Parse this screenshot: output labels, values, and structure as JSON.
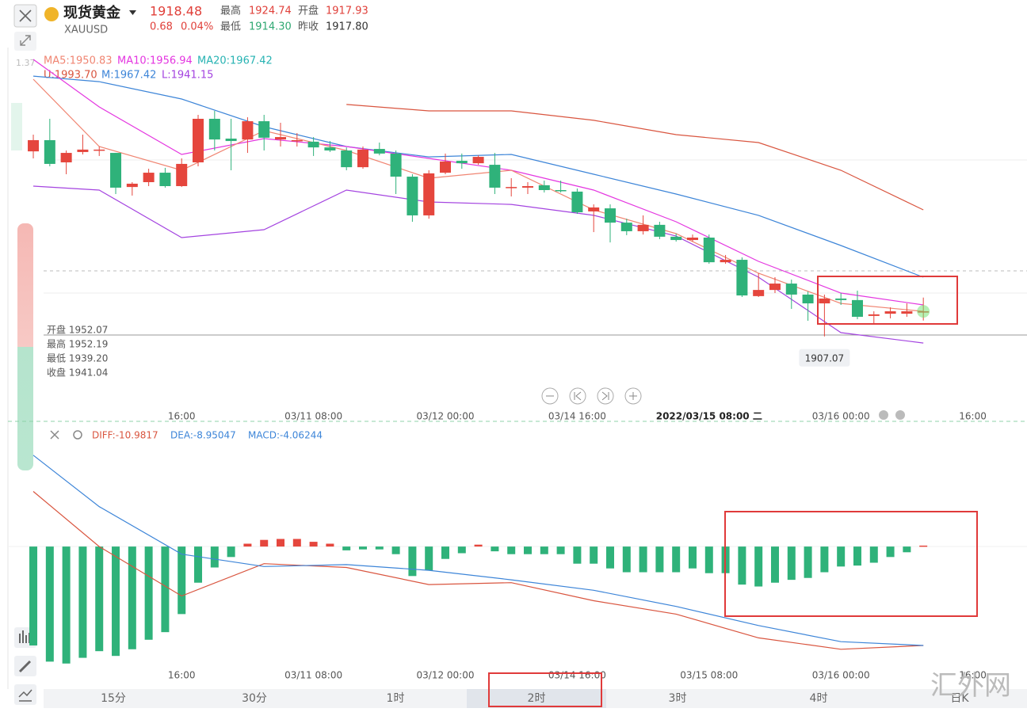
{
  "header": {
    "name": "现货黄金",
    "symbol": "XAUUSD",
    "price": "1918.48",
    "change": "0.68",
    "change_pct": "0.04%",
    "high_label": "最高",
    "high": "1924.74",
    "open_label": "开盘",
    "open": "1917.93",
    "low_label": "最低",
    "low": "1914.30",
    "prev_label": "昨收",
    "prev": "1917.80",
    "axis_hint": "1.37"
  },
  "legend_ma": [
    "MA5:1950.83",
    "MA10:1956.94",
    "MA20:1967.42"
  ],
  "legend_boll": [
    "U:1993.70",
    "M:1967.42",
    "L:1941.15"
  ],
  "info": [
    "开盘 1952.07",
    "最高 1952.19",
    "最低 1939.20",
    "收盘 1941.04"
  ],
  "chart_data": [
    {
      "type": "candlestick",
      "up_color": "#e5463d",
      "down_color": "#2fb27a",
      "xlim": [
        -1.54,
        60.29
      ],
      "ylim": [
        1874.6,
        2038.4
      ],
      "open": [
        1991.2,
        1996.3,
        1986.2,
        1990.9,
        1991.6,
        1990.5,
        1975.0,
        1977.2,
        1981.5,
        1975.4,
        1986.2,
        2006.0,
        1997.0,
        1996.6,
        2004.9,
        1996.6,
        1995.9,
        1995.6,
        1993.0,
        1991.6,
        1984.0,
        1992.3,
        1990.2,
        1979.7,
        1962.1,
        1981.5,
        1986.9,
        1985.8,
        1985.1,
        1974.7,
        1974.7,
        1975.8,
        1973.6,
        1972.9,
        1963.9,
        1965.3,
        1958.8,
        1954.9,
        1957.8,
        1952.4,
        1950.9,
        1952.0,
        1940.8,
        1941.9,
        1925.4,
        1928.2,
        1931.1,
        1926.1,
        1922.1,
        1924.3,
        1923.6,
        1916.4,
        1917.4,
        1917.4,
        1917.93
      ],
      "high": [
        1998.8,
        2006.0,
        1991.6,
        1998.8,
        1993.4,
        1990.5,
        1977.2,
        1983.3,
        1983.7,
        1988.0,
        2007.8,
        2009.6,
        2006.0,
        2006.7,
        2007.8,
        2004.2,
        1999.5,
        1997.7,
        1995.9,
        1993.0,
        1993.4,
        1995.2,
        1991.6,
        1980.8,
        1982.6,
        1990.2,
        1990.2,
        1989.4,
        1990.5,
        1979.0,
        1977.2,
        1977.9,
        1977.9,
        1974.3,
        1967.1,
        1967.1,
        1960.6,
        1962.1,
        1959.2,
        1953.8,
        1953.4,
        1953.4,
        1944.1,
        1943.0,
        1935.8,
        1934.0,
        1932.9,
        1927.5,
        1926.1,
        1926.8,
        1927.9,
        1918.5,
        1920.3,
        1922.1,
        1924.74
      ],
      "low": [
        1988.0,
        1984.4,
        1980.8,
        1989.8,
        1989.1,
        1971.8,
        1971.1,
        1975.4,
        1974.7,
        1975.0,
        1984.4,
        1991.6,
        1982.6,
        1990.5,
        1991.6,
        1993.4,
        1993.4,
        1989.1,
        1990.9,
        1982.6,
        1983.3,
        1989.4,
        1971.8,
        1959.2,
        1960.6,
        1980.8,
        1983.3,
        1985.1,
        1971.8,
        1970.7,
        1971.8,
        1972.5,
        1972.5,
        1962.8,
        1954.5,
        1949.8,
        1953.1,
        1953.4,
        1951.3,
        1950.2,
        1950.2,
        1940.1,
        1940.1,
        1925.0,
        1925.0,
        1926.8,
        1919.6,
        1914.2,
        1907.07,
        1921.4,
        1914.9,
        1913.1,
        1915.3,
        1916.0,
        1914.3
      ],
      "close": [
        1996.3,
        1985.5,
        1990.5,
        1992.0,
        1992.0,
        1974.7,
        1976.5,
        1981.5,
        1975.4,
        1985.5,
        2006.0,
        1996.6,
        1995.9,
        2004.9,
        1997.4,
        1997.7,
        1996.3,
        1993.0,
        1991.6,
        1984.0,
        1992.0,
        1990.2,
        1979.7,
        1962.1,
        1981.2,
        1986.6,
        1985.8,
        1988.7,
        1974.7,
        1975.0,
        1975.4,
        1973.6,
        1973.2,
        1963.5,
        1965.7,
        1958.8,
        1954.9,
        1957.8,
        1952.4,
        1950.9,
        1952.0,
        1940.8,
        1941.9,
        1925.7,
        1928.2,
        1931.1,
        1926.1,
        1922.1,
        1924.3,
        1923.6,
        1916.0,
        1917.1,
        1918.5,
        1918.5,
        1918.48
      ],
      "line_x": [
        0,
        4,
        9,
        14,
        19,
        24,
        29,
        34,
        39,
        44,
        49,
        54
      ],
      "series": [
        {
          "color": "#d9553f",
          "values": [
            2036.6,
            null,
            null,
            null,
            2012.5,
            2009.6,
            2009.6,
            2005.3,
            1998.8,
            1995.2,
            1982.6,
            1964.6
          ]
        },
        {
          "color": "#3d85d8",
          "values": [
            2025.4,
            2022.9,
            2015.0,
            2002.4,
            1993.4,
            1988.7,
            1989.8,
            1980.8,
            1971.8,
            1962.1,
            1948.4,
            1934.0
          ]
        },
        {
          "color": "#a444e0",
          "values": [
            1975.4,
            1973.6,
            1952.0,
            1955.6,
            1973.6,
            1968.2,
            1967.1,
            1962.1,
            1952.7,
            1934.0,
            1908.8,
            1904.1
          ]
        },
        {
          "color": "#e436e0",
          "values": [
            2033.0,
            2011.4,
            1989.8,
            1997.0,
            1993.4,
            1988.0,
            1982.6,
            1973.6,
            1959.2,
            1941.2,
            1926.8,
            1921.4
          ]
        },
        {
          "color": "#f08572",
          "values": [
            2024.0,
            1993.4,
            1982.6,
            2000.6,
            1991.6,
            1979.0,
            1982.6,
            1964.6,
            1953.8,
            1935.8,
            1922.1,
            1918.5
          ]
        }
      ],
      "xticks": [
        {
          "value": 9,
          "label": "16:00"
        },
        {
          "value": 17,
          "label": "03/11 08:00"
        },
        {
          "value": 25,
          "label": "03/12 00:00"
        },
        {
          "value": 33,
          "label": "03/14 16:00"
        },
        {
          "value": 41,
          "label": "2022/03/15 08:00 二"
        },
        {
          "value": 49,
          "label": "03/16 00:00"
        },
        {
          "value": 57,
          "label": "16:00"
        }
      ]
    },
    {
      "type": "macd",
      "up_color": "#e5463d",
      "down_color": "#2fb27a",
      "xlim": [
        -1.54,
        60.29
      ],
      "ylim": [
        -12.9,
        12.5
      ],
      "legend": [
        "DIFF:-10.9817",
        "DEA:-8.95047",
        "MACD:-4.06244"
      ],
      "values": [
        -10.4,
        -12.1,
        -12.3,
        -11.7,
        -11.0,
        -11.5,
        -10.8,
        -9.8,
        -9.0,
        -7.1,
        -3.8,
        -2.2,
        -1.1,
        0.3,
        0.7,
        0.8,
        0.8,
        0.5,
        0.3,
        -0.4,
        -0.3,
        -0.3,
        -0.8,
        -3.1,
        -2.5,
        -1.3,
        -0.7,
        0.2,
        -0.5,
        -0.8,
        -0.8,
        -0.8,
        -0.8,
        -1.8,
        -1.8,
        -2.3,
        -2.7,
        -2.7,
        -2.7,
        -2.7,
        -2.3,
        -2.8,
        -2.8,
        -4.0,
        -4.2,
        -3.8,
        -3.5,
        -3.3,
        -2.7,
        -2.1,
        -2.0,
        -1.7,
        -1.1,
        -0.6,
        0.1
      ],
      "line_x": [
        0,
        4,
        9,
        14,
        19,
        24,
        29,
        34,
        39,
        44,
        49,
        54
      ],
      "series": [
        {
          "color": "#d9553f",
          "values": [
            5.8,
            0,
            -5.2,
            -1.8,
            -2.2,
            -4.0,
            -3.8,
            -5.7,
            -7.1,
            -9.6,
            -10.8,
            -10.4
          ]
        },
        {
          "color": "#3d85d8",
          "values": [
            9.6,
            4.2,
            -0.8,
            -2.1,
            -1.9,
            -2.5,
            -3.5,
            -4.6,
            -6.3,
            -8.3,
            -10.0,
            -10.4
          ]
        }
      ],
      "xticks": [
        {
          "value": 9,
          "label": "16:00"
        },
        {
          "value": 17,
          "label": "03/11 08:00"
        },
        {
          "value": 25,
          "label": "03/12 00:00"
        },
        {
          "value": 33,
          "label": "03/14 16:00"
        },
        {
          "value": 41,
          "label": "03/15 08:00"
        },
        {
          "value": 49,
          "label": "03/16 00:00"
        },
        {
          "value": 57,
          "label": "16:00"
        }
      ]
    }
  ],
  "tabs": [
    "15分",
    "30分",
    "1时",
    "2时",
    "3时",
    "4时",
    "日K"
  ],
  "watermark": "汇外网"
}
